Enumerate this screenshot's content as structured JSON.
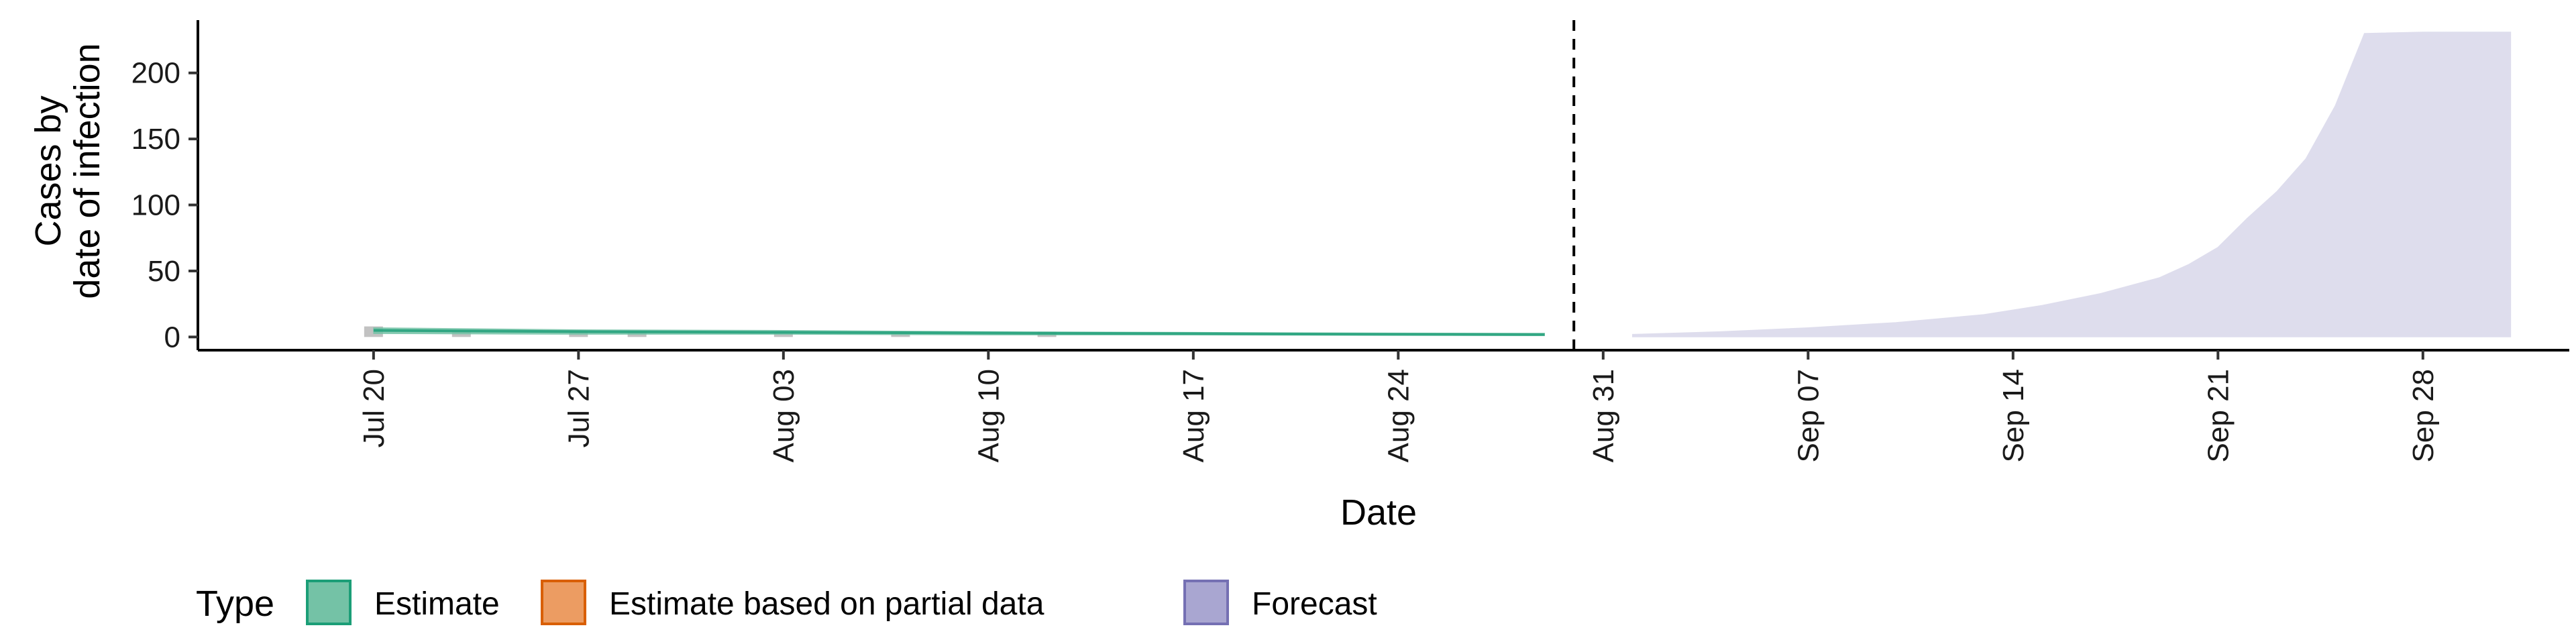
{
  "chart_data": {
    "type": "area",
    "xlabel": "Date",
    "ylabel": [
      "Cases by",
      "date of infection"
    ],
    "ylim": [
      -10,
      240
    ],
    "yticks": [
      0,
      50,
      100,
      150,
      200
    ],
    "xlim": [
      "2020-07-14",
      "2020-10-03"
    ],
    "xticks": [
      {
        "date": "2020-07-20",
        "label": "Jul 20"
      },
      {
        "date": "2020-07-27",
        "label": "Jul 27"
      },
      {
        "date": "2020-08-03",
        "label": "Aug 03"
      },
      {
        "date": "2020-08-10",
        "label": "Aug 10"
      },
      {
        "date": "2020-08-17",
        "label": "Aug 17"
      },
      {
        "date": "2020-08-24",
        "label": "Aug 24"
      },
      {
        "date": "2020-08-31",
        "label": "Aug 31"
      },
      {
        "date": "2020-09-07",
        "label": "Sep 07"
      },
      {
        "date": "2020-09-14",
        "label": "Sep 14"
      },
      {
        "date": "2020-09-21",
        "label": "Sep 21"
      },
      {
        "date": "2020-09-28",
        "label": "Sep 28"
      }
    ],
    "vline": "2020-08-30",
    "grid": false,
    "legend": {
      "title": "Type",
      "position": "bottom",
      "items": [
        {
          "label": "Estimate",
          "fill": "#74c2a6",
          "stroke": "#1b9e77"
        },
        {
          "label": "Estimate based on partial data",
          "fill": "#ec9c62",
          "stroke": "#d95f02"
        },
        {
          "label": "Forecast",
          "fill": "#a9a6d1",
          "stroke": "#7570b3"
        }
      ]
    },
    "observed_bars": [
      {
        "x": "2020-07-20",
        "y": 8
      },
      {
        "x": "2020-07-23",
        "y": 4
      },
      {
        "x": "2020-07-27",
        "y": 4
      },
      {
        "x": "2020-07-29",
        "y": 4
      },
      {
        "x": "2020-08-03",
        "y": 3
      },
      {
        "x": "2020-08-07",
        "y": 3
      },
      {
        "x": "2020-08-12",
        "y": 4
      }
    ],
    "series": [
      {
        "name": "Estimate",
        "color": "#1b9e77",
        "fill": "#74c2a6",
        "x": [
          "2020-07-20",
          "2020-07-27",
          "2020-08-03",
          "2020-08-10",
          "2020-08-17",
          "2020-08-24",
          "2020-08-29"
        ],
        "median": [
          5,
          4,
          3.5,
          3,
          2.5,
          2,
          1.8
        ],
        "lower": [
          2.5,
          2,
          2,
          1.5,
          1.5,
          1.2,
          1
        ],
        "upper": [
          7,
          5.5,
          5,
          4,
          3.5,
          3,
          2.8
        ]
      },
      {
        "name": "Forecast",
        "color": "#7570b3",
        "fill": "#d9d8ea",
        "x": [
          "2020-09-01",
          "2020-09-04",
          "2020-09-07",
          "2020-09-10",
          "2020-09-13",
          "2020-09-15",
          "2020-09-17",
          "2020-09-19",
          "2020-09-20",
          "2020-09-21",
          "2020-09-22",
          "2020-09-23",
          "2020-09-24",
          "2020-09-25",
          "2020-09-26",
          "2020-09-28",
          "2020-10-01"
        ],
        "lower": [
          0,
          0,
          0,
          0,
          0,
          0,
          0,
          0,
          0,
          0,
          0,
          0,
          0,
          0,
          0,
          0,
          0
        ],
        "upper": [
          2,
          4,
          7,
          11,
          17,
          24,
          33,
          45,
          55,
          68,
          90,
          110,
          135,
          175,
          230,
          231,
          231
        ]
      }
    ]
  }
}
